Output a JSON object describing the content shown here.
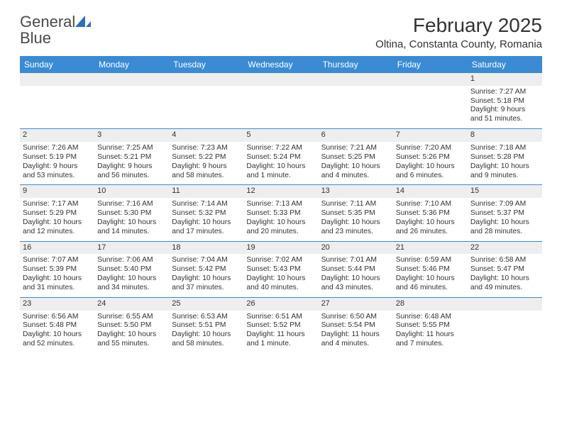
{
  "logo": {
    "word1": "General",
    "word2": "Blue"
  },
  "title": "February 2025",
  "subtitle": "Oltina, Constanta County, Romania",
  "colors": {
    "headerBg": "#3b8bd4",
    "rule": "#3b8bd4",
    "dayNumBg": "#eeeeee",
    "text": "#333333",
    "logoBlue": "#2e6fb8"
  },
  "weekdays": [
    "Sunday",
    "Monday",
    "Tuesday",
    "Wednesday",
    "Thursday",
    "Friday",
    "Saturday"
  ],
  "weeks": [
    [
      null,
      null,
      null,
      null,
      null,
      null,
      {
        "n": "1",
        "sr": "7:27 AM",
        "ss": "5:18 PM",
        "dl1": "9 hours",
        "dl2": "and 51 minutes."
      }
    ],
    [
      {
        "n": "2",
        "sr": "7:26 AM",
        "ss": "5:19 PM",
        "dl1": "9 hours",
        "dl2": "and 53 minutes."
      },
      {
        "n": "3",
        "sr": "7:25 AM",
        "ss": "5:21 PM",
        "dl1": "9 hours",
        "dl2": "and 56 minutes."
      },
      {
        "n": "4",
        "sr": "7:23 AM",
        "ss": "5:22 PM",
        "dl1": "9 hours",
        "dl2": "and 58 minutes."
      },
      {
        "n": "5",
        "sr": "7:22 AM",
        "ss": "5:24 PM",
        "dl1": "10 hours",
        "dl2": "and 1 minute."
      },
      {
        "n": "6",
        "sr": "7:21 AM",
        "ss": "5:25 PM",
        "dl1": "10 hours",
        "dl2": "and 4 minutes."
      },
      {
        "n": "7",
        "sr": "7:20 AM",
        "ss": "5:26 PM",
        "dl1": "10 hours",
        "dl2": "and 6 minutes."
      },
      {
        "n": "8",
        "sr": "7:18 AM",
        "ss": "5:28 PM",
        "dl1": "10 hours",
        "dl2": "and 9 minutes."
      }
    ],
    [
      {
        "n": "9",
        "sr": "7:17 AM",
        "ss": "5:29 PM",
        "dl1": "10 hours",
        "dl2": "and 12 minutes."
      },
      {
        "n": "10",
        "sr": "7:16 AM",
        "ss": "5:30 PM",
        "dl1": "10 hours",
        "dl2": "and 14 minutes."
      },
      {
        "n": "11",
        "sr": "7:14 AM",
        "ss": "5:32 PM",
        "dl1": "10 hours",
        "dl2": "and 17 minutes."
      },
      {
        "n": "12",
        "sr": "7:13 AM",
        "ss": "5:33 PM",
        "dl1": "10 hours",
        "dl2": "and 20 minutes."
      },
      {
        "n": "13",
        "sr": "7:11 AM",
        "ss": "5:35 PM",
        "dl1": "10 hours",
        "dl2": "and 23 minutes."
      },
      {
        "n": "14",
        "sr": "7:10 AM",
        "ss": "5:36 PM",
        "dl1": "10 hours",
        "dl2": "and 26 minutes."
      },
      {
        "n": "15",
        "sr": "7:09 AM",
        "ss": "5:37 PM",
        "dl1": "10 hours",
        "dl2": "and 28 minutes."
      }
    ],
    [
      {
        "n": "16",
        "sr": "7:07 AM",
        "ss": "5:39 PM",
        "dl1": "10 hours",
        "dl2": "and 31 minutes."
      },
      {
        "n": "17",
        "sr": "7:06 AM",
        "ss": "5:40 PM",
        "dl1": "10 hours",
        "dl2": "and 34 minutes."
      },
      {
        "n": "18",
        "sr": "7:04 AM",
        "ss": "5:42 PM",
        "dl1": "10 hours",
        "dl2": "and 37 minutes."
      },
      {
        "n": "19",
        "sr": "7:02 AM",
        "ss": "5:43 PM",
        "dl1": "10 hours",
        "dl2": "and 40 minutes."
      },
      {
        "n": "20",
        "sr": "7:01 AM",
        "ss": "5:44 PM",
        "dl1": "10 hours",
        "dl2": "and 43 minutes."
      },
      {
        "n": "21",
        "sr": "6:59 AM",
        "ss": "5:46 PM",
        "dl1": "10 hours",
        "dl2": "and 46 minutes."
      },
      {
        "n": "22",
        "sr": "6:58 AM",
        "ss": "5:47 PM",
        "dl1": "10 hours",
        "dl2": "and 49 minutes."
      }
    ],
    [
      {
        "n": "23",
        "sr": "6:56 AM",
        "ss": "5:48 PM",
        "dl1": "10 hours",
        "dl2": "and 52 minutes."
      },
      {
        "n": "24",
        "sr": "6:55 AM",
        "ss": "5:50 PM",
        "dl1": "10 hours",
        "dl2": "and 55 minutes."
      },
      {
        "n": "25",
        "sr": "6:53 AM",
        "ss": "5:51 PM",
        "dl1": "10 hours",
        "dl2": "and 58 minutes."
      },
      {
        "n": "26",
        "sr": "6:51 AM",
        "ss": "5:52 PM",
        "dl1": "11 hours",
        "dl2": "and 1 minute."
      },
      {
        "n": "27",
        "sr": "6:50 AM",
        "ss": "5:54 PM",
        "dl1": "11 hours",
        "dl2": "and 4 minutes."
      },
      {
        "n": "28",
        "sr": "6:48 AM",
        "ss": "5:55 PM",
        "dl1": "11 hours",
        "dl2": "and 7 minutes."
      },
      null
    ]
  ],
  "labels": {
    "sunrise": "Sunrise:",
    "sunset": "Sunset:",
    "daylight": "Daylight:"
  }
}
